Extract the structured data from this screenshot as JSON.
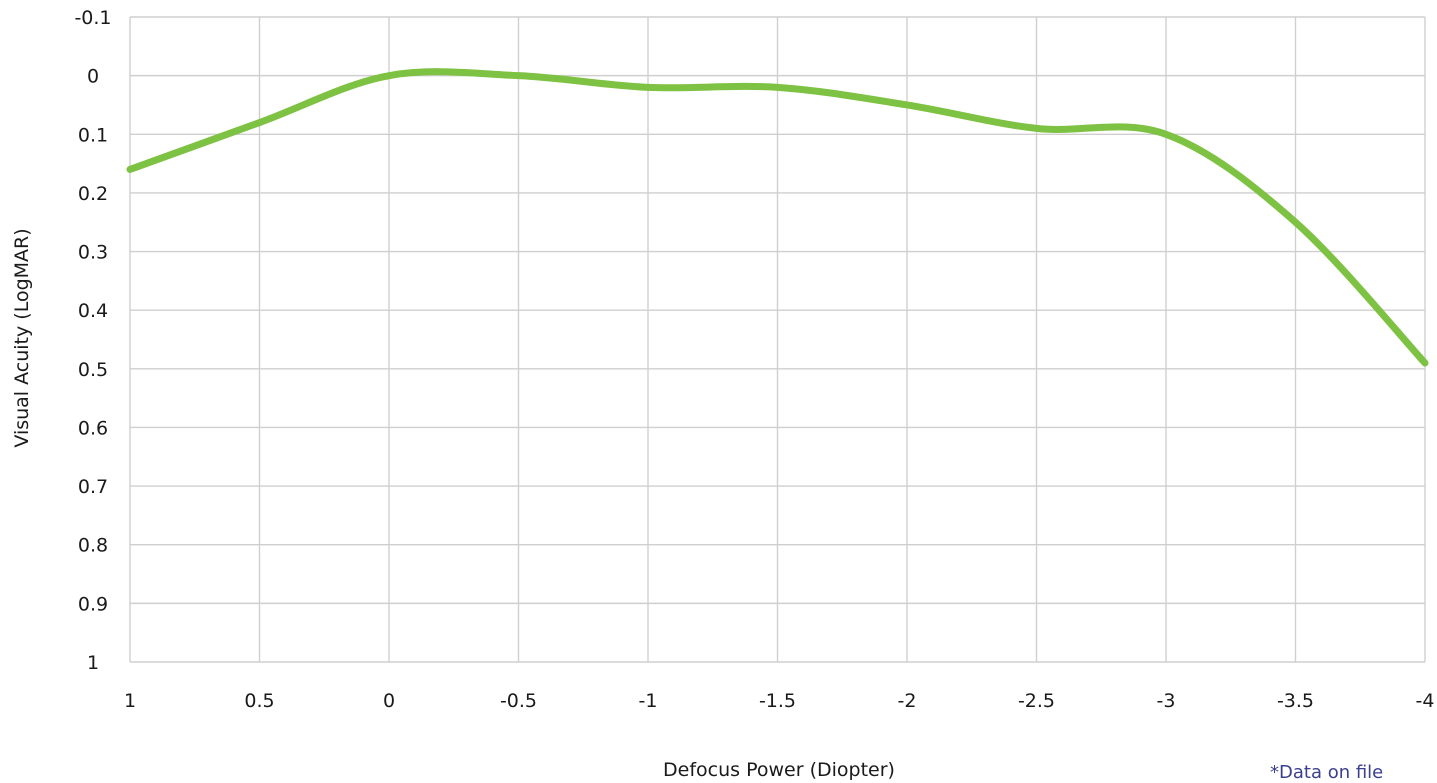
{
  "chart_data": {
    "type": "line",
    "xlabel": "Defocus Power (Diopter)",
    "ylabel": "Visual Acuity (LogMAR)",
    "x_ticks": [
      "1",
      "0.5",
      "0",
      "-0.5",
      "-1",
      "-1.5",
      "-2",
      "-2.5",
      "-3",
      "-3.5",
      "-4"
    ],
    "y_ticks": [
      "-0.1",
      "0",
      "0.1",
      "0.2",
      "0.3",
      "0.4",
      "0.5",
      "0.6",
      "0.7",
      "0.8",
      "0.9",
      "1"
    ],
    "xlim": [
      1,
      -4
    ],
    "ylim": [
      -0.1,
      1
    ],
    "y_inverted": true,
    "grid": true,
    "series": [
      {
        "color": "#7dc242",
        "x": [
          1,
          0.5,
          0,
          -0.5,
          -1,
          -1.5,
          -2,
          -2.5,
          -3,
          -3.5,
          -4
        ],
        "values": [
          0.16,
          0.08,
          0.0,
          0.0,
          0.02,
          0.02,
          0.05,
          0.09,
          0.1,
          0.25,
          0.49
        ]
      }
    ]
  },
  "footnote": "*Data on file"
}
